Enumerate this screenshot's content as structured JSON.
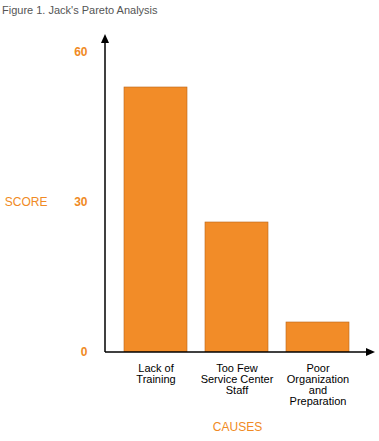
{
  "chart_data": {
    "type": "bar",
    "title": "Figure 1. Jack's Pareto Analysis",
    "x_label": "CAUSES",
    "y_label": "SCORE",
    "categories": [
      "Lack of\nTraining",
      "Too Few\nService Center\nStaff",
      "Poor\nOrganization\nand\nPreparation"
    ],
    "values": [
      53,
      26,
      6
    ],
    "color": "#f28c28",
    "ylim": [
      0,
      60
    ],
    "yticks": [
      0,
      30,
      60
    ],
    "grid": false
  }
}
